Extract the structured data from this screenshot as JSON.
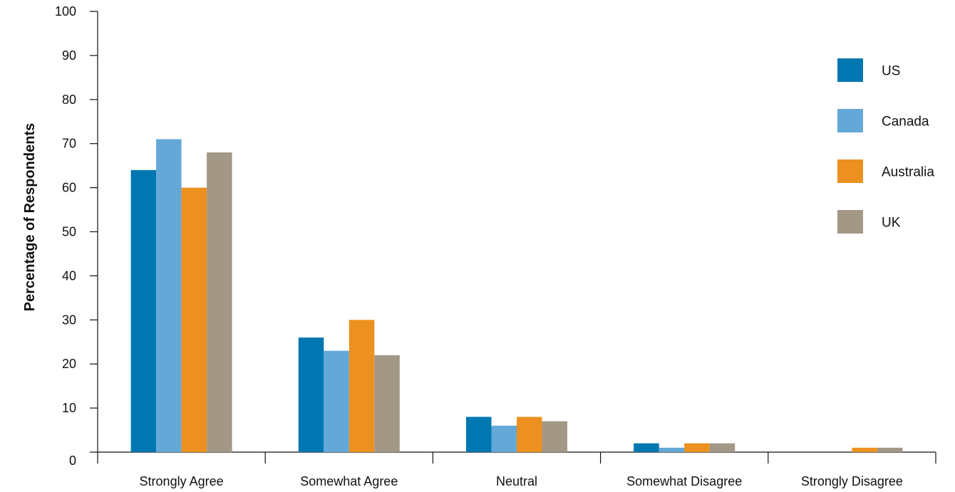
{
  "chart_data": {
    "type": "bar",
    "title": "",
    "xlabel": "",
    "ylabel": "Percentage of Respondents",
    "ylim": [
      0,
      100
    ],
    "yticks": [
      0,
      10,
      20,
      30,
      40,
      50,
      60,
      70,
      80,
      90,
      100
    ],
    "grid": false,
    "legend_position": "right",
    "categories": [
      "Strongly Agree",
      "Somewhat Agree",
      "Neutral",
      "Somewhat Disagree",
      "Strongly Disagree"
    ],
    "series": [
      {
        "name": "US",
        "color": "#0077b0",
        "values": [
          64,
          26,
          8,
          2,
          0
        ]
      },
      {
        "name": "Canada",
        "color": "#64a8d8",
        "values": [
          71,
          23,
          6,
          1,
          0
        ]
      },
      {
        "name": "Australia",
        "color": "#ec9120",
        "values": [
          60,
          30,
          8,
          2,
          1
        ]
      },
      {
        "name": "UK",
        "color": "#a39786",
        "values": [
          68,
          22,
          7,
          2,
          1
        ]
      }
    ]
  }
}
